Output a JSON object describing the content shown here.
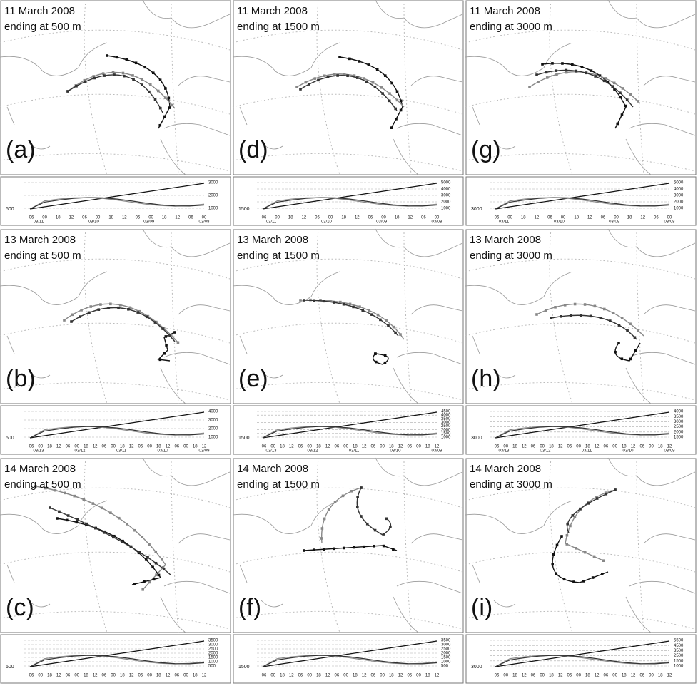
{
  "panels": [
    {
      "date": "11 March 2008",
      "ending": "ending at 500 m",
      "letter": "(a)",
      "start_label": "500",
      "height_ticks": [
        "3000",
        "2000",
        "1000"
      ],
      "time_ticks": [
        "06",
        "00",
        "18",
        "12",
        "06",
        "00",
        "18",
        "12",
        "06",
        "00",
        "18",
        "12",
        "06",
        "00"
      ],
      "date_ticks": [
        "03/11",
        "03/10",
        "03/09",
        "03/08"
      ]
    },
    {
      "date": "13 March 2008",
      "ending": "ending at 500 m",
      "letter": "(b)",
      "start_label": "500",
      "height_ticks": [
        "4000",
        "3000",
        "2000",
        "1000"
      ],
      "time_ticks": [
        "06",
        "00",
        "18",
        "12",
        "06",
        "00",
        "18",
        "12",
        "06",
        "00",
        "18",
        "12",
        "06",
        "00",
        "18",
        "12",
        "06",
        "00",
        "18",
        "12"
      ],
      "date_ticks": [
        "03/13",
        "03/12",
        "03/11",
        "03/10",
        "03/09"
      ]
    },
    {
      "date": "14 March 2008",
      "ending": "ending at 500 m",
      "letter": "(c)",
      "start_label": "500",
      "height_ticks": [
        "3500",
        "3000",
        "2500",
        "2000",
        "1500",
        "1000",
        "500"
      ],
      "time_ticks": [
        "06",
        "00",
        "18",
        "12",
        "06",
        "00",
        "18",
        "12",
        "06",
        "00",
        "18",
        "12",
        "06",
        "00",
        "18",
        "12",
        "06",
        "00",
        "18",
        "12"
      ],
      "date_ticks": []
    },
    {
      "date": "11 March 2008",
      "ending": "ending at 1500 m",
      "letter": "(d)",
      "start_label": "1500",
      "height_ticks": [
        "5000",
        "4000",
        "3000",
        "2000",
        "1000"
      ],
      "time_ticks": [
        "06",
        "00",
        "18",
        "12",
        "06",
        "00",
        "18",
        "12",
        "06",
        "00",
        "18",
        "12",
        "06",
        "00"
      ],
      "date_ticks": [
        "03/11",
        "03/10",
        "03/09",
        "03/08"
      ]
    },
    {
      "date": "13 March 2008",
      "ending": "ending at 1500 m",
      "letter": "(e)",
      "start_label": "1500",
      "height_ticks": [
        "4500",
        "4000",
        "3500",
        "3000",
        "2500",
        "2000",
        "1500",
        "1000"
      ],
      "time_ticks": [
        "06",
        "00",
        "18",
        "12",
        "06",
        "00",
        "18",
        "12",
        "06",
        "00",
        "18",
        "12",
        "06",
        "00",
        "18",
        "12",
        "06",
        "00",
        "18",
        "12"
      ],
      "date_ticks": [
        "03/13",
        "03/12",
        "03/11",
        "03/10",
        "03/09"
      ]
    },
    {
      "date": "14 March 2008",
      "ending": "ending at 1500 m",
      "letter": "(f)",
      "start_label": "1500",
      "height_ticks": [
        "3500",
        "3000",
        "2500",
        "2000",
        "1500",
        "1000",
        "500"
      ],
      "time_ticks": [
        "06",
        "00",
        "18",
        "12",
        "06",
        "00",
        "18",
        "12",
        "06",
        "00",
        "18",
        "12",
        "06",
        "00",
        "18",
        "12",
        "06",
        "00",
        "18",
        "12"
      ],
      "date_ticks": []
    },
    {
      "date": "11 March 2008",
      "ending": "ending at 3000 m",
      "letter": "(g)",
      "start_label": "3000",
      "height_ticks": [
        "5000",
        "4000",
        "3000",
        "2000",
        "1000"
      ],
      "time_ticks": [
        "06",
        "00",
        "18",
        "12",
        "06",
        "00",
        "18",
        "12",
        "06",
        "00",
        "18",
        "12",
        "06",
        "00"
      ],
      "date_ticks": [
        "03/11",
        "03/10",
        "03/09",
        "03/08"
      ]
    },
    {
      "date": "13 March 2008",
      "ending": "ending at 3000 m",
      "letter": "(h)",
      "start_label": "3000",
      "height_ticks": [
        "4000",
        "3500",
        "3000",
        "2500",
        "2000",
        "1500"
      ],
      "time_ticks": [
        "06",
        "00",
        "18",
        "12",
        "06",
        "00",
        "18",
        "12",
        "06",
        "00",
        "18",
        "12",
        "06",
        "00",
        "18",
        "12",
        "06",
        "00",
        "18",
        "12"
      ],
      "date_ticks": [
        "03/13",
        "03/12",
        "03/11",
        "03/10",
        "03/09"
      ]
    },
    {
      "date": "14 March 2008",
      "ending": "ending at 3000 m",
      "letter": "(i)",
      "start_label": "3000",
      "height_ticks": [
        "5500",
        "4500",
        "3500",
        "2500",
        "1500",
        "1000"
      ],
      "time_ticks": [
        "06",
        "00",
        "18",
        "12",
        "06",
        "00",
        "18",
        "12",
        "06",
        "00",
        "18",
        "12",
        "06",
        "00",
        "18",
        "12",
        "06",
        "00",
        "18",
        "12"
      ],
      "date_ticks": []
    }
  ]
}
